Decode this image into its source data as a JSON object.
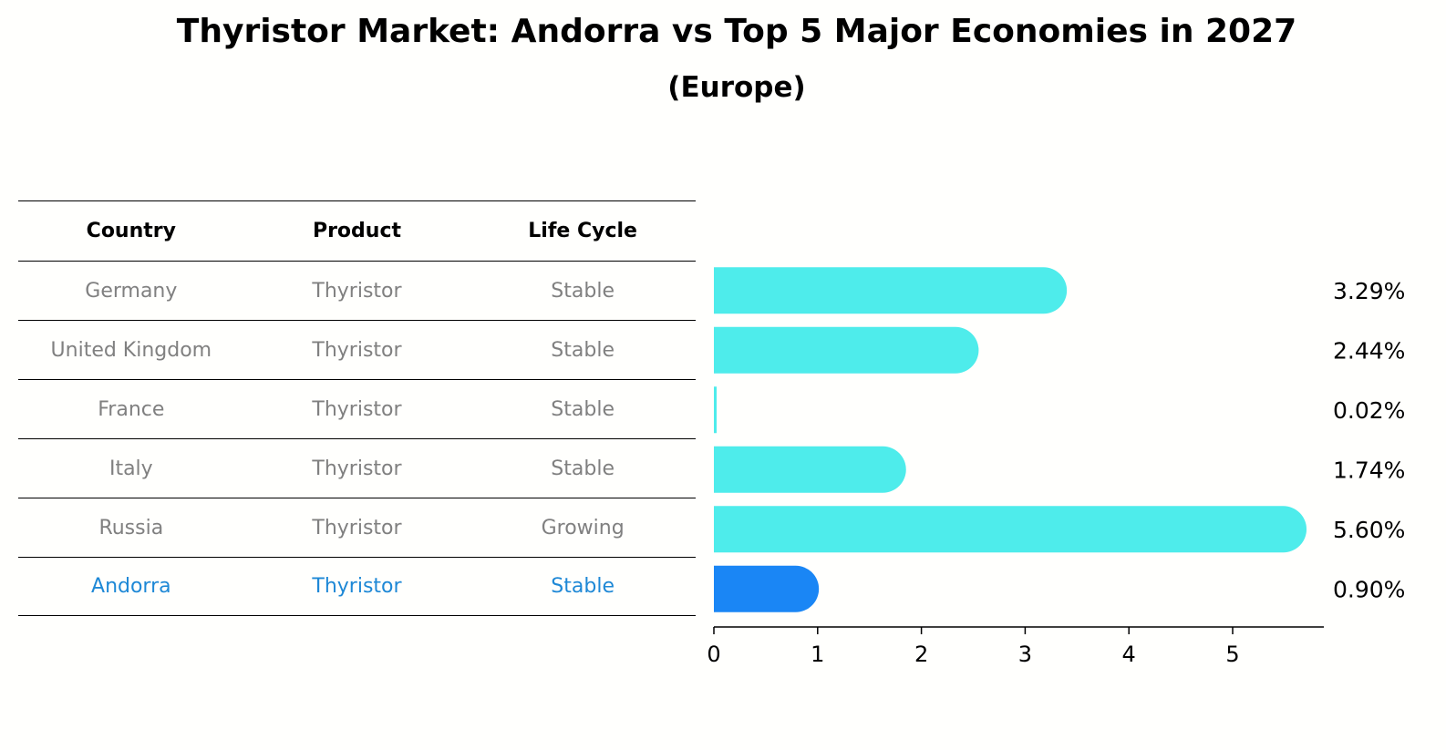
{
  "chart_data": {
    "type": "bar",
    "orientation": "horizontal",
    "title": "Thyristor Market: Andorra vs Top 5 Major Economies in 2027",
    "subtitle": "(Europe)",
    "categories": [
      "Germany",
      "United Kingdom",
      "France",
      "Italy",
      "Russia",
      "Andorra"
    ],
    "values": [
      3.29,
      2.44,
      0.02,
      1.74,
      5.6,
      0.9
    ],
    "value_labels": [
      "3.29%",
      "2.44%",
      "0.02%",
      "1.74%",
      "5.60%",
      "0.90%"
    ],
    "highlight": "Andorra",
    "xlim": [
      0,
      5.9
    ],
    "xticks": [
      0,
      1,
      2,
      3,
      4,
      5
    ],
    "colors": {
      "default": "#4eeceb",
      "highlight": "#1a86f5"
    }
  },
  "table": {
    "headers": [
      "Country",
      "Product",
      "Life Cycle"
    ],
    "rows": [
      [
        "Germany",
        "Thyristor",
        "Stable"
      ],
      [
        "United Kingdom",
        "Thyristor",
        "Stable"
      ],
      [
        "France",
        "Thyristor",
        "Stable"
      ],
      [
        "Italy",
        "Thyristor",
        "Stable"
      ],
      [
        "Russia",
        "Thyristor",
        "Growing"
      ],
      [
        "Andorra",
        "Thyristor",
        "Stable"
      ]
    ]
  }
}
